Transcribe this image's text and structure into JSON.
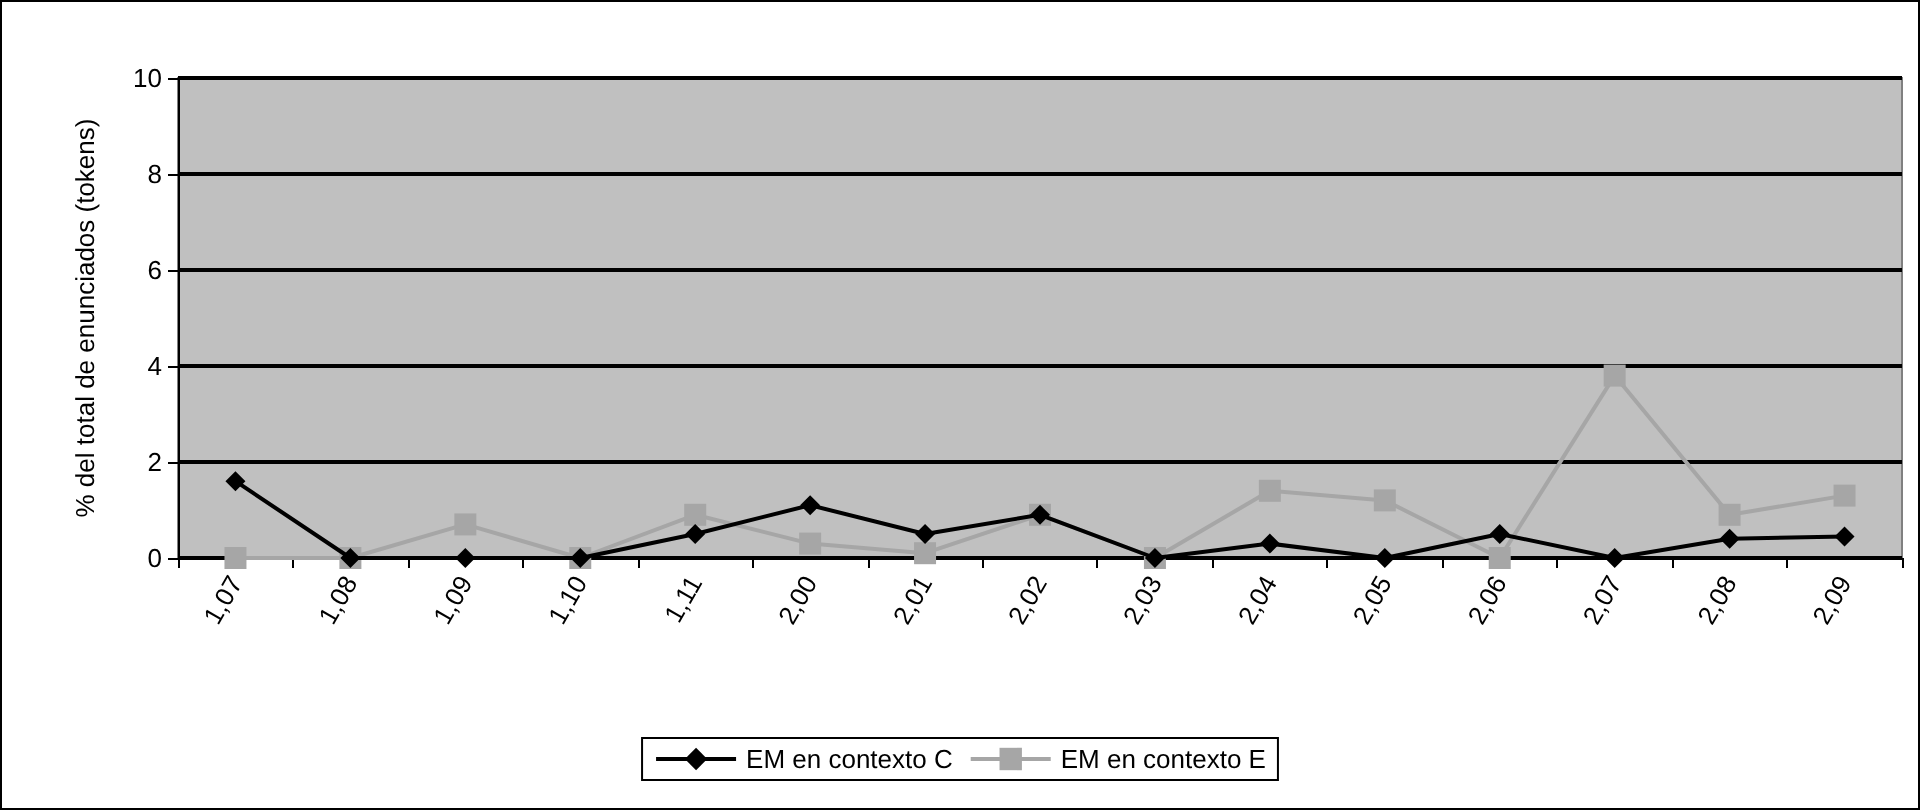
{
  "chart_data": {
    "type": "line",
    "ylabel": "% del total de enunciados (tokens)",
    "categories": [
      "1,07",
      "1,08",
      "1,09",
      "1,10",
      "1,11",
      "2,00",
      "2,01",
      "2,02",
      "2,03",
      "2,04",
      "2,05",
      "2,06",
      "2,07",
      "2,08",
      "2,09"
    ],
    "series": [
      {
        "name": "EM en contexto C",
        "color": "#000000",
        "marker": "diamond",
        "values": [
          1.6,
          0,
          0,
          0,
          0.5,
          1.1,
          0.5,
          0.9,
          0,
          0.3,
          0,
          0.5,
          0,
          0.4,
          0.45
        ]
      },
      {
        "name": "EM en contexto E",
        "color": "#a6a6a6",
        "marker": "square",
        "values": [
          0,
          0,
          0.7,
          0,
          0.9,
          0.3,
          0.1,
          0.9,
          0,
          1.4,
          1.2,
          0,
          3.8,
          0.9,
          1.3
        ]
      }
    ],
    "ylim": [
      0,
      10
    ],
    "yticks": [
      0,
      2,
      4,
      6,
      8,
      10
    ],
    "grid": "y",
    "legend": "bottom",
    "line_style": "solid"
  }
}
